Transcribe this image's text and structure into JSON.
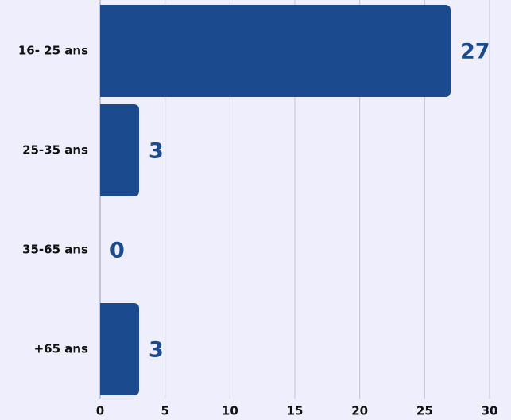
{
  "chart_data": {
    "type": "bar",
    "orientation": "horizontal",
    "categories": [
      "16- 25 ans",
      "25-35 ans",
      "35-65 ans",
      "+65 ans"
    ],
    "values": [
      27,
      3,
      0,
      3
    ],
    "color": "#1c4a8e",
    "xlim": [
      0,
      30
    ],
    "xticks": [
      0,
      5,
      10,
      15,
      20,
      25,
      30
    ],
    "grid": true
  }
}
